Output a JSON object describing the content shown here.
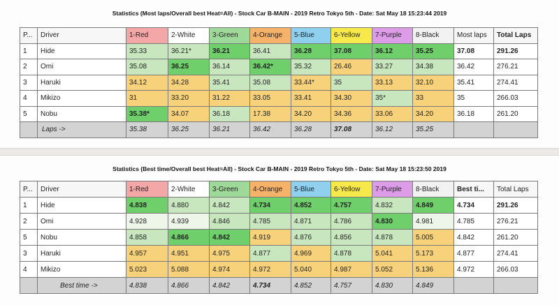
{
  "report1": {
    "title": "Statistics (Most laps/Overall best Heat=All) - Stock Car B-MAIN - 2019 Retro Tokyo 5th - Date: Sat May 18 15:23:44 2019",
    "headers": [
      "P...",
      "Driver",
      "1-Red",
      "2-White",
      "3-Green",
      "4-Orange",
      "5-Blue",
      "6-Yellow",
      "7-Purple",
      "8-Black",
      "Most laps",
      "Total Laps"
    ],
    "rows": [
      {
        "pos": "1",
        "driver": "Hide",
        "cells": [
          "35.33",
          "36.21*",
          "36.21",
          "36.41",
          "36.28",
          "37.08",
          "36.12",
          "35.25"
        ],
        "best": "37.08",
        "total": "291.26"
      },
      {
        "pos": "2",
        "driver": "Omi",
        "cells": [
          "35.08",
          "36.25",
          "36.14",
          "36.42*",
          "35.32",
          "26.46",
          "33.27",
          "34.38"
        ],
        "best": "36.42",
        "total": "276.21"
      },
      {
        "pos": "3",
        "driver": "Haruki",
        "cells": [
          "34.12",
          "34.28",
          "35.41",
          "35.08",
          "33.44*",
          "35",
          "33.13",
          "32.10"
        ],
        "best": "35.41",
        "total": "274.41"
      },
      {
        "pos": "4",
        "driver": "Mikizo",
        "cells": [
          "31",
          "33.20",
          "31.22",
          "33.05",
          "33.41",
          "34.30",
          "35*",
          "33"
        ],
        "best": "35",
        "total": "266.03"
      },
      {
        "pos": "5",
        "driver": "Nobu",
        "cells": [
          "35.38*",
          "34.07",
          "36.18",
          "17.38",
          "34.20",
          "34.36",
          "33.06",
          "34.20"
        ],
        "best": "36.18",
        "total": "261.20"
      }
    ],
    "footer_label": "Laps ->",
    "footer": [
      "35.38",
      "36.25",
      "36.21",
      "36.42",
      "36.28",
      "37.08",
      "36.12",
      "35.25"
    ]
  },
  "report2": {
    "title": "Statistics (Best time/Overall best Heat=All) - Stock Car B-MAIN - 2019 Retro Tokyo 5th - Date: Sat May 18 15:23:50 2019",
    "headers": [
      "P...",
      "Driver",
      "1-Red",
      "2-White",
      "3-Green",
      "4-Orange",
      "5-Blue",
      "6-Yellow",
      "7-Purple",
      "8-Black",
      "Best ti...",
      "Total Laps"
    ],
    "rows": [
      {
        "pos": "1",
        "driver": "Hide",
        "cells": [
          "4.838",
          "4.880",
          "4.842",
          "4.734",
          "4.852",
          "4.757",
          "4.832",
          "4.849"
        ],
        "best": "4.734",
        "total": "291.26"
      },
      {
        "pos": "2",
        "driver": "Omi",
        "cells": [
          "4.928",
          "4.939",
          "4.846",
          "4.785",
          "4.871",
          "4.786",
          "4.830",
          "4.981"
        ],
        "best": "4.785",
        "total": "276.21"
      },
      {
        "pos": "5",
        "driver": "Nobu",
        "cells": [
          "4.858",
          "4.866",
          "4.842",
          "4.919",
          "4.876",
          "4.856",
          "4.878",
          "5.005"
        ],
        "best": "4.842",
        "total": "261.20"
      },
      {
        "pos": "3",
        "driver": "Haruki",
        "cells": [
          "4.957",
          "4.951",
          "4.975",
          "4.877",
          "4.969",
          "4.878",
          "5.041",
          "5.173"
        ],
        "best": "4.877",
        "total": "274.41"
      },
      {
        "pos": "4",
        "driver": "Mikizo",
        "cells": [
          "5.023",
          "5.088",
          "4.974",
          "4.972",
          "5.040",
          "4.987",
          "5.052",
          "5.136"
        ],
        "best": "4.972",
        "total": "266.03"
      }
    ],
    "footer_label": "Best time ->",
    "footer": [
      "4.838",
      "4.866",
      "4.842",
      "4.734",
      "4.852",
      "4.757",
      "4.830",
      "4.849"
    ]
  },
  "colors": {
    "red": "#f4a7a7",
    "white": "#ffffff",
    "green": "#9fd99a",
    "orange": "#f7b26a",
    "blue": "#8fd0ef",
    "yellow": "#f8e94a",
    "purple": "#dd9ce8",
    "black": "#f2f2f2",
    "best_green": "#6fd06b",
    "light_green": "#c9e7bf",
    "yellow_fill": "#f7d27a",
    "footer_gray": "#d3d3d3"
  }
}
